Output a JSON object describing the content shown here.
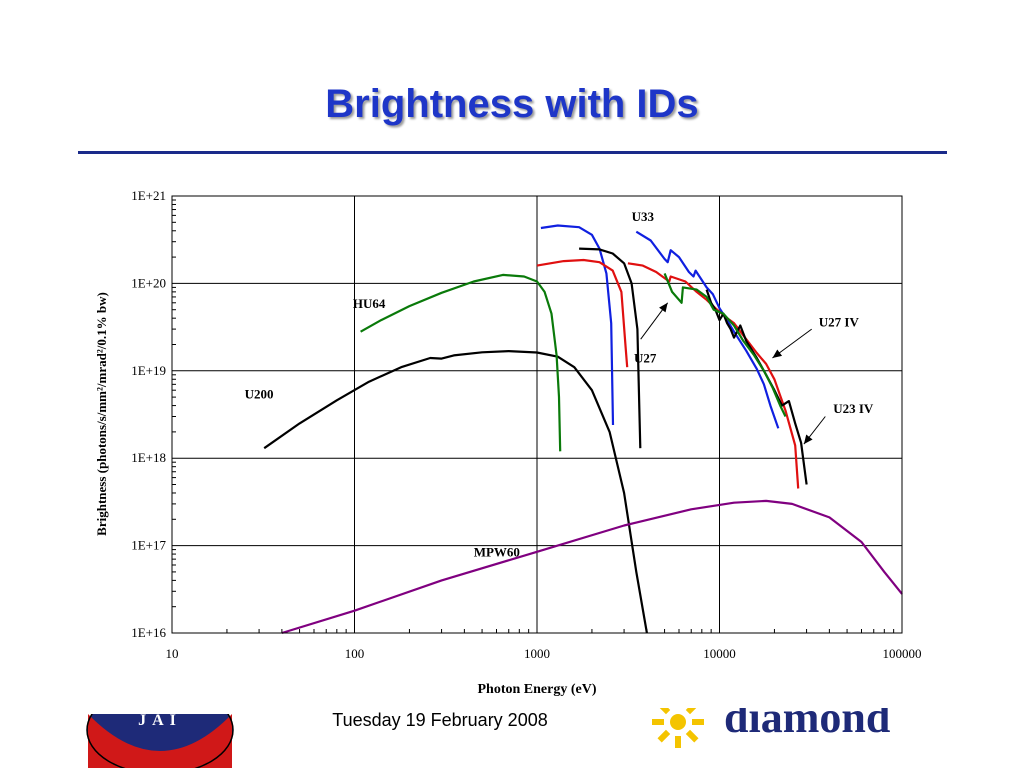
{
  "slide": {
    "title": "Brightness with IDs",
    "footer_date": "Tuesday 19 February 2008",
    "logo_left_text": "JAI",
    "logo_right_text": "diamond"
  },
  "colors": {
    "title": "#1e36c8",
    "rule": "#1a2a8a",
    "U200": "#000000",
    "HU64": "#0a7a0a",
    "MPW60": "#800080",
    "U33": "#1020e0",
    "U27": "#e01010",
    "U23_IV": "#000000",
    "U27_IV": "#0a7a0a",
    "diamond_logo": "#f4c400"
  },
  "chart_data": {
    "type": "line",
    "x_scale": "log",
    "y_scale": "log",
    "xlabel": "Photon Energy (eV)",
    "ylabel": "Brightness (photons/s/mm²/mrad²/0.1% bw)",
    "xlim": [
      10,
      100000
    ],
    "ylim": [
      1e+16,
      1e+21
    ],
    "grid": true,
    "x_ticks": [
      "10",
      "100",
      "1000",
      "10000",
      "100000"
    ],
    "y_ticks": [
      "1E+16",
      "1E+17",
      "1E+18",
      "1E+19",
      "1E+20",
      "1E+21"
    ],
    "series": [
      {
        "name": "U200",
        "color_key": "U200",
        "points": [
          [
            32,
            1.3e+18
          ],
          [
            50,
            2.5e+18
          ],
          [
            80,
            4.6e+18
          ],
          [
            120,
            7.5e+18
          ],
          [
            180,
            1.1e+19
          ],
          [
            260,
            1.4e+19
          ],
          [
            300,
            1.38e+19
          ],
          [
            350,
            1.5e+19
          ],
          [
            500,
            1.63e+19
          ],
          [
            700,
            1.68e+19
          ],
          [
            1000,
            1.62e+19
          ],
          [
            1300,
            1.45e+19
          ],
          [
            1600,
            1.1e+19
          ],
          [
            2000,
            6e+18
          ],
          [
            2500,
            2e+18
          ],
          [
            3000,
            4e+17
          ],
          [
            3500,
            5e+16
          ],
          [
            4000,
            1e+16
          ]
        ]
      },
      {
        "name": "HU64",
        "color_key": "HU64",
        "points": [
          [
            108,
            2.8e+19
          ],
          [
            140,
            3.8e+19
          ],
          [
            200,
            5.5e+19
          ],
          [
            300,
            7.8e+19
          ],
          [
            450,
            1.05e+20
          ],
          [
            650,
            1.25e+20
          ],
          [
            850,
            1.2e+20
          ],
          [
            1000,
            1.05e+20
          ],
          [
            1100,
            8e+19
          ],
          [
            1200,
            4.5e+19
          ],
          [
            1280,
            1.5e+19
          ],
          [
            1320,
            5e+18
          ],
          [
            1340,
            1.2e+18
          ]
        ]
      },
      {
        "name": "MPW60",
        "color_key": "MPW60",
        "points": [
          [
            40,
            1e+16
          ],
          [
            100,
            1.8e+16
          ],
          [
            300,
            4e+16
          ],
          [
            1000,
            8.5e+16
          ],
          [
            3000,
            1.7e+17
          ],
          [
            7000,
            2.6e+17
          ],
          [
            12000,
            3.1e+17
          ],
          [
            18000,
            3.25e+17
          ],
          [
            25000,
            3e+17
          ],
          [
            40000,
            2.1e+17
          ],
          [
            60000,
            1.1e+17
          ],
          [
            80000,
            5e+16
          ],
          [
            100000,
            2.8e+16
          ]
        ]
      },
      {
        "name": "U33",
        "color_key": "U33",
        "points": [
          [
            1050,
            4.3e+20
          ],
          [
            1300,
            4.6e+20
          ],
          [
            1700,
            4.4e+20
          ],
          [
            2000,
            3.6e+20
          ],
          [
            2200,
            2.5e+20
          ],
          [
            2400,
            1.3e+20
          ],
          [
            2550,
            3.5e+19
          ],
          [
            2610,
            2.4e+18
          ]
        ],
        "segments": [
          [
            [
              3500,
              3.9e+20
            ],
            [
              4200,
              3.1e+20
            ],
            [
              5000,
              1.9e+20
            ],
            [
              5200,
              1.75e+20
            ],
            [
              5400,
              2.4e+20
            ],
            [
              6000,
              2e+20
            ],
            [
              6800,
              1.35e+20
            ],
            [
              7200,
              1.2e+20
            ],
            [
              7400,
              1.4e+20
            ],
            [
              8500,
              9e+19
            ],
            [
              9200,
              7.5e+19
            ],
            [
              10000,
              5.2e+19
            ],
            [
              11000,
              3.8e+19
            ],
            [
              12000,
              2.8e+19
            ],
            [
              14000,
              1.7e+19
            ],
            [
              16000,
              1.05e+19
            ],
            [
              17500,
              7e+18
            ],
            [
              19000,
              4e+18
            ],
            [
              21000,
              2.2e+18
            ]
          ]
        ]
      },
      {
        "name": "U27",
        "color_key": "U27",
        "points": [
          [
            1000,
            1.6e+20
          ],
          [
            1400,
            1.8e+20
          ],
          [
            1800,
            1.85e+20
          ],
          [
            2200,
            1.75e+20
          ],
          [
            2600,
            1.4e+20
          ],
          [
            2900,
            8e+19
          ],
          [
            3050,
            2e+19
          ],
          [
            3120,
            1.1e+19
          ]
        ],
        "segments": [
          [
            [
              3150,
              1.7e+20
            ],
            [
              3800,
              1.6e+20
            ],
            [
              4500,
              1.35e+20
            ],
            [
              5300,
              1.05e+20
            ],
            [
              5400,
              1.2e+20
            ],
            [
              6500,
              1.05e+20
            ],
            [
              7500,
              8e+19
            ],
            [
              8500,
              6.5e+19
            ],
            [
              9500,
              5.2e+19
            ],
            [
              11000,
              4e+19
            ],
            [
              12000,
              3.5e+19
            ],
            [
              14000,
              2.3e+19
            ],
            [
              16000,
              1.6e+19
            ],
            [
              18000,
              1.2e+19
            ],
            [
              20000,
              8e+18
            ],
            [
              23000,
              3.5e+18
            ],
            [
              26000,
              1.4e+18
            ],
            [
              27000,
              4.5e+17
            ]
          ]
        ]
      },
      {
        "name": "U23 IV",
        "color_key": "U23_IV",
        "points": [
          [
            1700,
            2.5e+20
          ],
          [
            2200,
            2.45e+20
          ],
          [
            2600,
            2.2e+20
          ],
          [
            3000,
            1.7e+20
          ],
          [
            3300,
            1e+20
          ],
          [
            3550,
            3e+19
          ],
          [
            3680,
            1.3e+18
          ]
        ],
        "segments": [
          [
            [
              8500,
              8.5e+19
            ],
            [
              9000,
              6e+19
            ],
            [
              9500,
              5e+19
            ],
            [
              10000,
              3.8e+19
            ],
            [
              10500,
              4.5e+19
            ],
            [
              11000,
              3.5e+19
            ],
            [
              11500,
              3e+19
            ],
            [
              12000,
              2.4e+19
            ],
            [
              13000,
              3.3e+19
            ],
            [
              14000,
              2.2e+19
            ],
            [
              16000,
              1.4e+19
            ],
            [
              18000,
              9e+18
            ],
            [
              20000,
              6e+18
            ],
            [
              22000,
              4e+18
            ],
            [
              24000,
              4.5e+18
            ],
            [
              26000,
              2.5e+18
            ],
            [
              28000,
              1.5e+18
            ],
            [
              30000,
              5e+17
            ]
          ]
        ]
      },
      {
        "name": "U27 IV",
        "color_key": "U27_IV",
        "points": [
          [
            5000,
            1.3e+20
          ],
          [
            5500,
            8e+19
          ],
          [
            6200,
            6e+19
          ],
          [
            6300,
            9e+19
          ],
          [
            7500,
            8.5e+19
          ],
          [
            8500,
            7e+19
          ],
          [
            9300,
            5e+19
          ],
          [
            10500,
            4.5e+19
          ],
          [
            12000,
            3.3e+19
          ],
          [
            13500,
            2.2e+19
          ],
          [
            15500,
            1.5e+19
          ],
          [
            17500,
            1e+19
          ],
          [
            19500,
            6.5e+18
          ],
          [
            21500,
            4e+18
          ],
          [
            23000,
            3e+18
          ]
        ]
      }
    ],
    "labels": [
      {
        "text": "U33",
        "x": 3300,
        "y": 5.2e+20
      },
      {
        "text": "HU64",
        "x": 98,
        "y": 5.2e+19
      },
      {
        "text": "U200",
        "x": 25,
        "y": 4.8e+18
      },
      {
        "text": "MPW60",
        "x": 450,
        "y": 7.5e+16
      },
      {
        "text": "U27",
        "x": 3400,
        "y": 1.25e+19
      },
      {
        "text": "U27 IV",
        "x": 35000,
        "y": 3.2e+19
      },
      {
        "text": "U23 IV",
        "x": 42000,
        "y": 3.3e+18
      }
    ],
    "annotations": [
      {
        "from": [
          3700,
          2.3e+19
        ],
        "to": [
          5200,
          6e+19
        ]
      },
      {
        "from": [
          32000,
          3e+19
        ],
        "to": [
          19500,
          1.4e+19
        ]
      },
      {
        "from": [
          38000,
          3e+18
        ],
        "to": [
          29000,
          1.45e+18
        ]
      }
    ]
  }
}
